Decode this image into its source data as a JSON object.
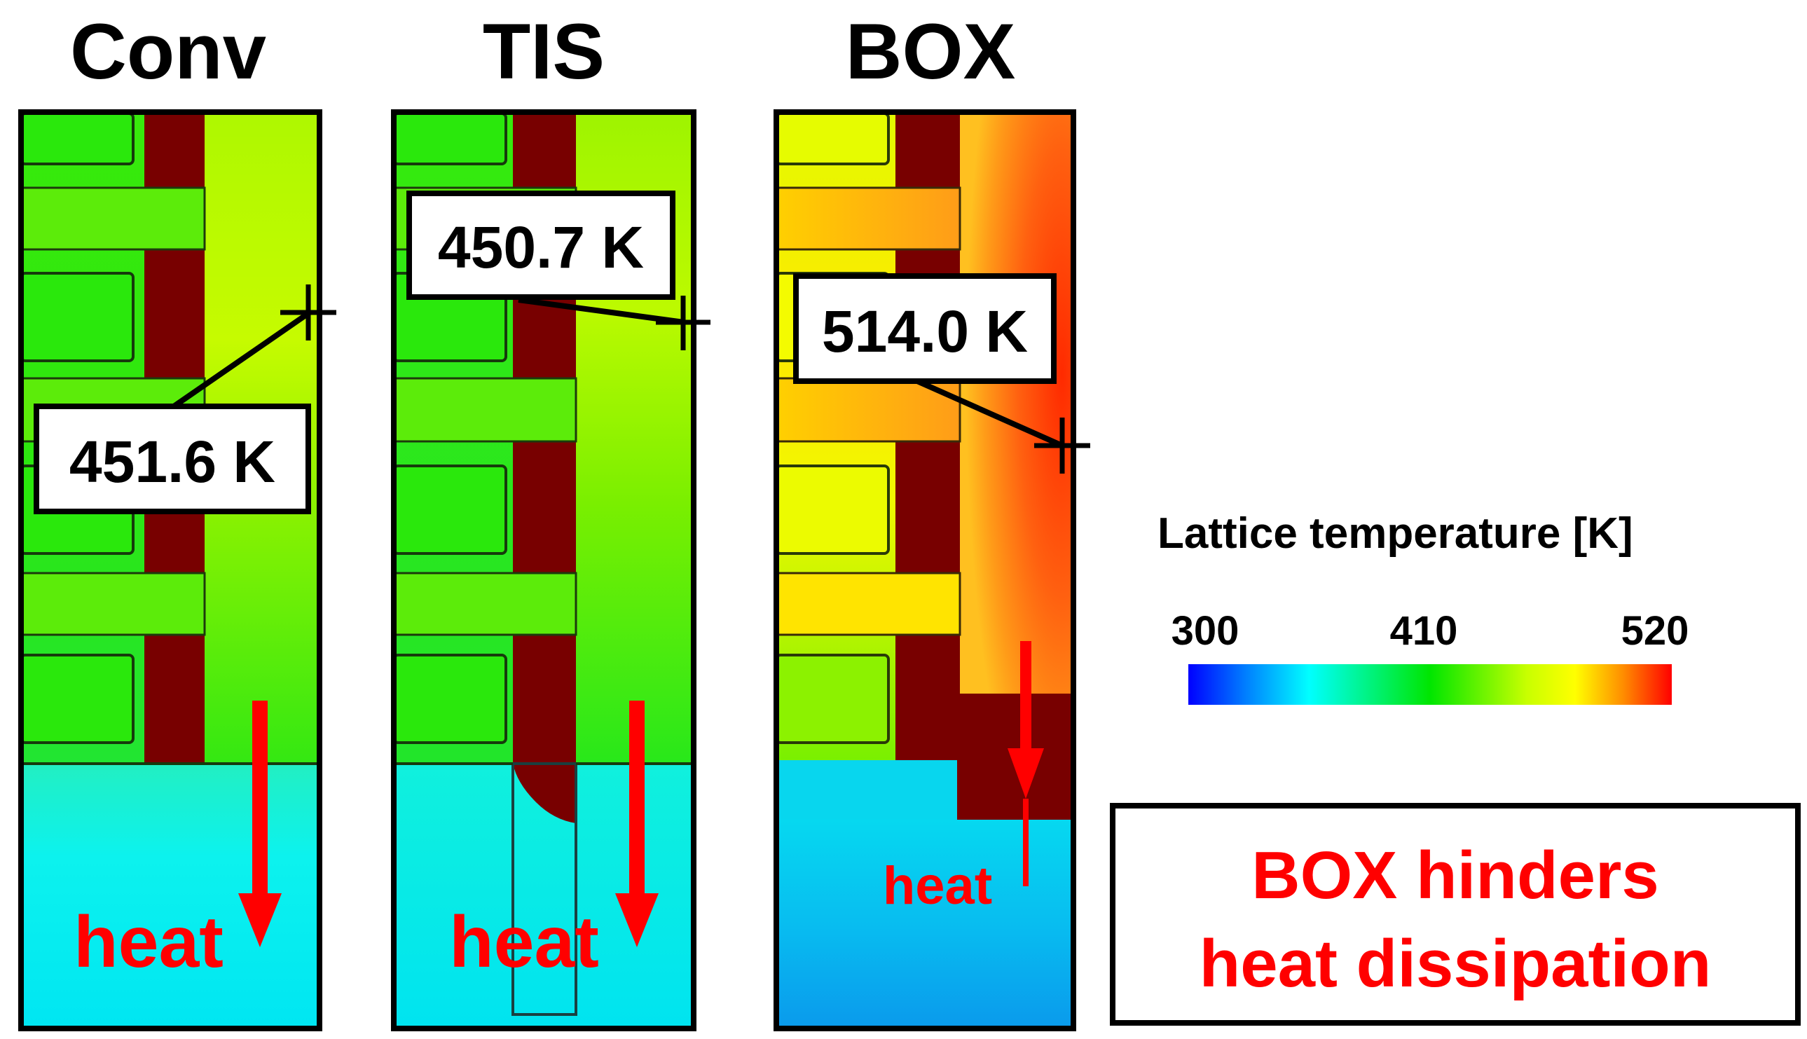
{
  "panels": [
    {
      "id": "conv",
      "title": "Conv",
      "temperature_label": "451.6 K",
      "heat_label": "heat"
    },
    {
      "id": "tis",
      "title": "TIS",
      "temperature_label": "450.7 K",
      "heat_label": "heat"
    },
    {
      "id": "box",
      "title": "BOX",
      "temperature_label": "514.0 K",
      "heat_label": "heat"
    }
  ],
  "colorbar": {
    "title": "Lattice temperature [K]",
    "min_label": "300",
    "mid_label": "410",
    "max_label": "520",
    "min": 300,
    "max": 520
  },
  "note": {
    "line1": "BOX hinders",
    "line2": "heat dissipation"
  },
  "colors": {
    "gate": "#780000",
    "arrow": "#ff0000",
    "substrate_cool": "#00f0f0",
    "substrate_cold": "#0aa8ef",
    "fin_green": "#2ee80f",
    "fin_yellowgreen": "#b4fb00",
    "fin_yellow": "#ffff00",
    "fin_orange": "#ff9a1a",
    "fin_red": "#ff3a00"
  }
}
